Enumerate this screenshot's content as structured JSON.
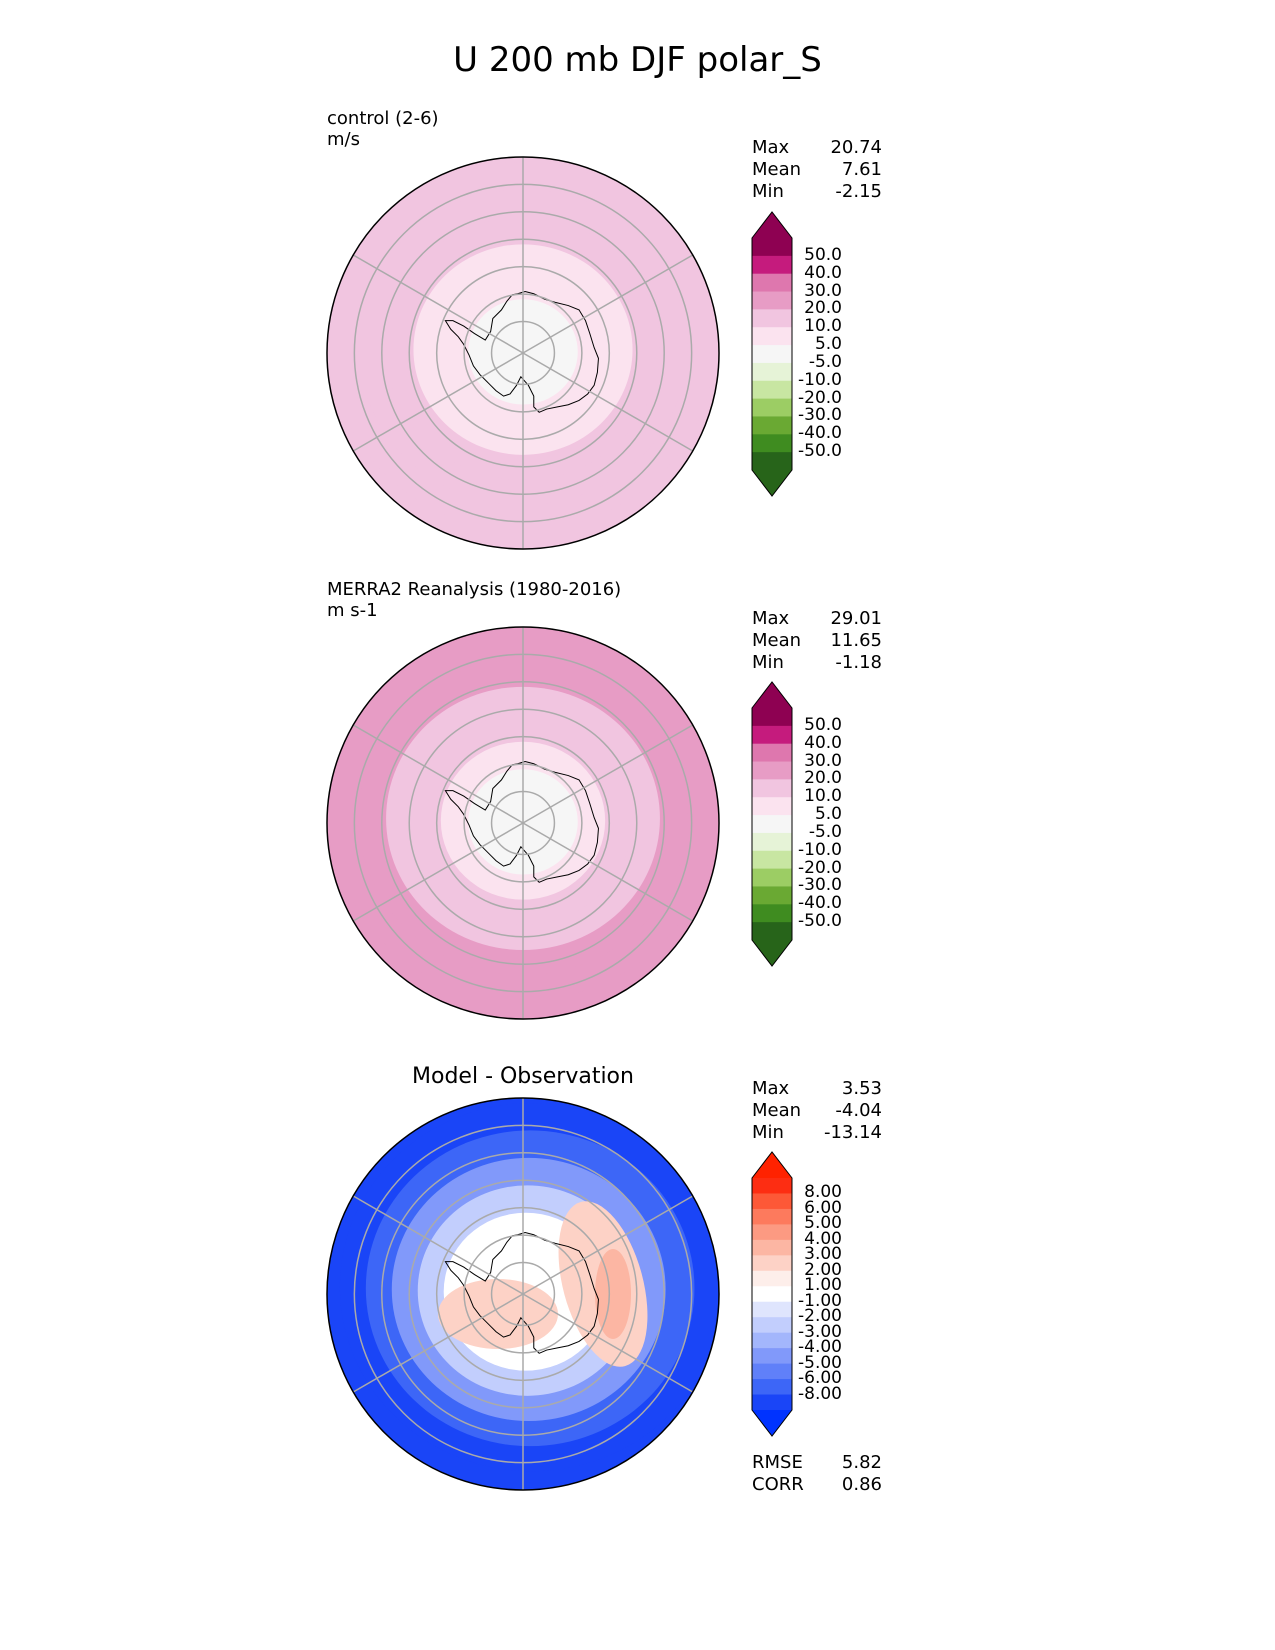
{
  "figure": {
    "title": "U 200 mb DJF polar_S"
  },
  "panels": [
    {
      "id": "test",
      "name_line1": "control (2-6)",
      "name_line2": "m/s",
      "center_title": "",
      "stats": [
        {
          "label": "Max",
          "value": "20.74"
        },
        {
          "label": "Mean",
          "value": "7.61"
        },
        {
          "label": "Min",
          "value": "-2.15"
        }
      ],
      "extra_stats": [],
      "cmap": "pinkgreen",
      "field": {
        "center": -2.15,
        "ring_values": [
          0,
          2,
          5,
          9,
          13,
          16,
          19
        ]
      },
      "colorbar": {
        "labels": [
          "50.0",
          "40.0",
          "30.0",
          "20.0",
          "10.0",
          "5.0",
          "-5.0",
          "-10.0",
          "-20.0",
          "-30.0",
          "-40.0",
          "-50.0"
        ],
        "colors": [
          "#8e0152",
          "#c51b7d",
          "#de77ae",
          "#e79cc5",
          "#f1c5e0",
          "#fbe3ef",
          "#f6f6f6",
          "#e6f3d7",
          "#c8e6a2",
          "#9ccd64",
          "#6aa933",
          "#3f8c20",
          "#27641a"
        ],
        "end_top": "#8e0152",
        "end_bottom": "#276419"
      }
    },
    {
      "id": "ref",
      "name_line1": "MERRA2 Reanalysis (1980-2016)",
      "name_line2": "m s-1",
      "center_title": "",
      "stats": [
        {
          "label": "Max",
          "value": "29.01"
        },
        {
          "label": "Mean",
          "value": "11.65"
        },
        {
          "label": "Min",
          "value": "-1.18"
        }
      ],
      "extra_stats": [],
      "cmap": "pinkgreen",
      "field": {
        "center": -1.18,
        "ring_values": [
          1,
          4,
          9,
          13,
          17,
          21,
          26
        ]
      },
      "colorbar": {
        "labels": [
          "50.0",
          "40.0",
          "30.0",
          "20.0",
          "10.0",
          "5.0",
          "-5.0",
          "-10.0",
          "-20.0",
          "-30.0",
          "-40.0",
          "-50.0"
        ],
        "colors": [
          "#8e0152",
          "#c51b7d",
          "#de77ae",
          "#e79cc5",
          "#f1c5e0",
          "#fbe3ef",
          "#f6f6f6",
          "#e6f3d7",
          "#c8e6a2",
          "#9ccd64",
          "#6aa933",
          "#3f8c20",
          "#27641a"
        ],
        "end_top": "#8e0152",
        "end_bottom": "#276419"
      }
    },
    {
      "id": "diff",
      "name_line1": "",
      "name_line2": "",
      "center_title": "Model - Observation",
      "stats": [
        {
          "label": "Max",
          "value": "3.53"
        },
        {
          "label": "Mean",
          "value": "-4.04"
        },
        {
          "label": "Min",
          "value": "-13.14"
        }
      ],
      "extra_stats": [
        {
          "label": "RMSE",
          "value": "5.82"
        },
        {
          "label": "CORR",
          "value": "0.86"
        }
      ],
      "cmap": "bluered",
      "field": {
        "center": 0.5,
        "ring_values": [
          0.5,
          0.5,
          -0.8,
          -2.5,
          -4.5,
          -7,
          -9
        ]
      },
      "colorbar": {
        "labels": [
          "8.00",
          "6.00",
          "5.00",
          "4.00",
          "3.00",
          "2.00",
          "1.00",
          "-1.00",
          "-2.00",
          "-3.00",
          "-4.00",
          "-5.00",
          "-6.00",
          "-8.00"
        ],
        "colors": [
          "#fd2d12",
          "#fd5837",
          "#fd7a5d",
          "#fc9a82",
          "#fcb6a3",
          "#fdd2c6",
          "#fdeeea",
          "#ffffff",
          "#dfe5fd",
          "#c2cefd",
          "#a3b6fc",
          "#8199fa",
          "#6080f9",
          "#3d66f7",
          "#1a45f7"
        ],
        "end_top": "#ff2200",
        "end_bottom": "#0033ff"
      }
    }
  ]
}
